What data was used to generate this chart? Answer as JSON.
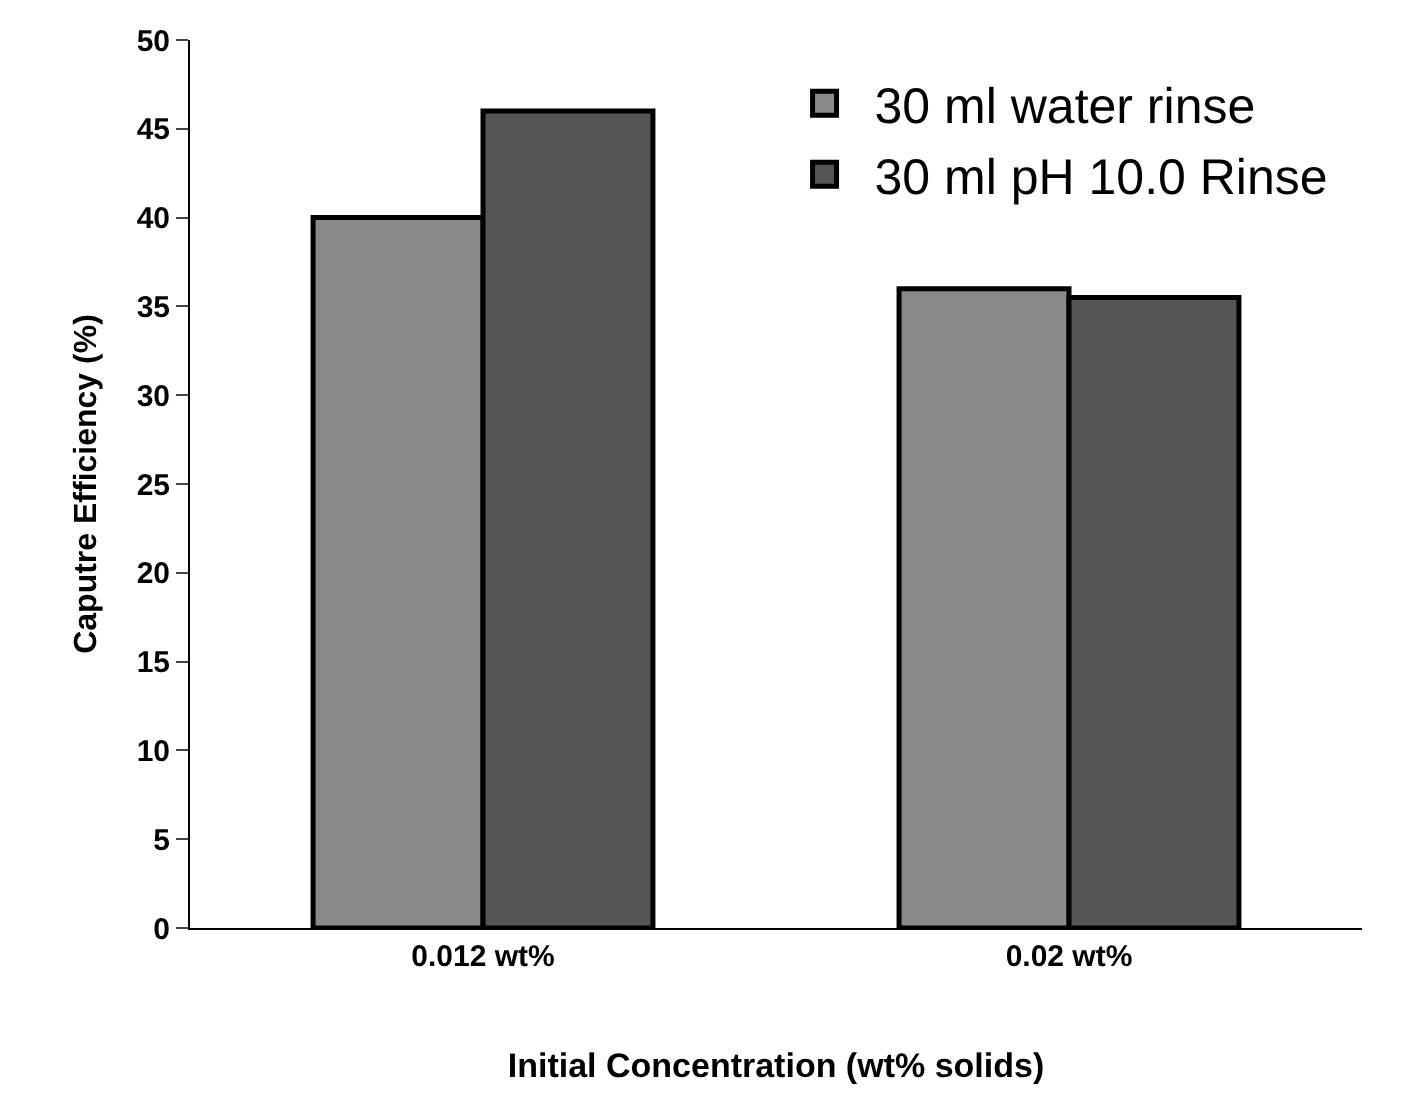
{
  "chart_data": {
    "type": "bar",
    "xlabel": "Initial Concentration (wt% solids)",
    "ylabel": "Caputre Efficiency (%)",
    "categories": [
      "0.012 wt%",
      "0.02 wt%"
    ],
    "series": [
      {
        "name": "30 ml water rinse",
        "color": "#8a8a8a",
        "values": [
          40,
          36
        ]
      },
      {
        "name": "30 ml pH 10.0 Rinse",
        "color": "#555555",
        "values": [
          46,
          35.5
        ]
      }
    ],
    "ylim": [
      0,
      50
    ],
    "yticks": [
      0,
      5,
      10,
      15,
      20,
      25,
      30,
      35,
      40,
      45,
      50
    ],
    "legend": "top right"
  }
}
